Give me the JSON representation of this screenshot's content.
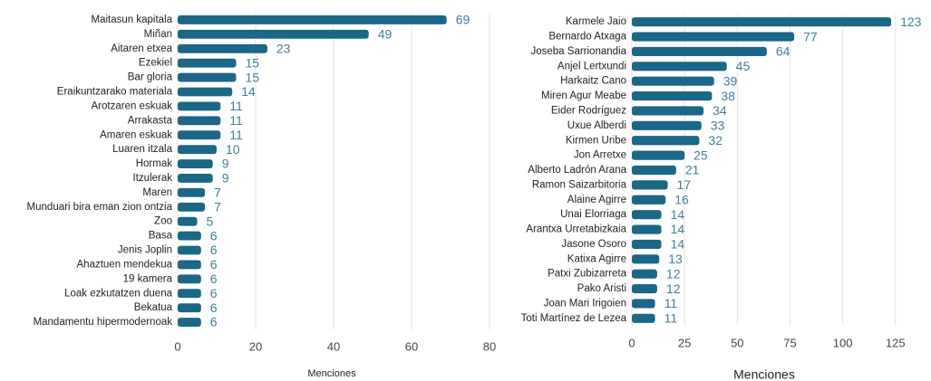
{
  "chart_data": [
    {
      "type": "bar",
      "orientation": "horizontal",
      "color": "#1b6787",
      "xlabel": "Menciones",
      "grid": true,
      "categories": [
        "Maitasun kapitala",
        "Miñan",
        "Aitaren etxea",
        "Ezekiel",
        "Bar gloria",
        "Eraikuntzarako materiala",
        "Arotzaren eskuak",
        "Arrakasta",
        "Amaren eskuak",
        "Luaren itzala",
        "Hormak",
        "Itzulerak",
        "Maren",
        "Munduari bira eman zion ontzia",
        "Zoo",
        "Basa",
        "Jenis Joplin",
        "Ahaztuen mendekua",
        "19 kamera",
        "Loak ezkutatzen duena",
        "Bekatua",
        "Mandamentu hipermodernoak"
      ],
      "values": [
        69,
        49,
        23,
        15,
        15,
        14,
        11,
        11,
        11,
        10,
        9,
        9,
        7,
        7,
        5,
        6,
        6,
        6,
        6,
        6,
        6,
        6
      ],
      "xlim": [
        0,
        80
      ],
      "xticks": [
        0,
        20,
        40,
        60,
        80
      ]
    },
    {
      "type": "bar",
      "orientation": "horizontal",
      "color": "#1b6787",
      "xlabel": "Menciones",
      "grid": true,
      "categories": [
        "Karmele Jaio",
        "Bernardo Atxaga",
        "Joseba Sarrionandia",
        "Anjel Lertxundi",
        "Harkaitz Cano",
        "Miren Agur Meabe",
        "Eider Rodríguez",
        "Uxue Alberdi",
        "Kirmen Uribe",
        "Jon Arretxe",
        "Alberto Ladrón Arana",
        "Ramon Saizarbitoria",
        "Alaine Agirre",
        "Unai Elorriaga",
        "Arantxa Urretabizkaia",
        "Jasone Osoro",
        "Katixa Agirre",
        "Patxi Zubizarreta",
        "Pako Aristi",
        "Joan Mari Irigoien",
        "Toti Martínez de Lezea"
      ],
      "values": [
        123,
        77,
        64,
        45,
        39,
        38,
        34,
        33,
        32,
        25,
        21,
        17,
        16,
        14,
        14,
        14,
        13,
        12,
        12,
        11,
        11
      ],
      "xlim": [
        0,
        138
      ],
      "xticks": [
        0,
        25,
        50,
        75,
        100,
        125
      ]
    }
  ]
}
